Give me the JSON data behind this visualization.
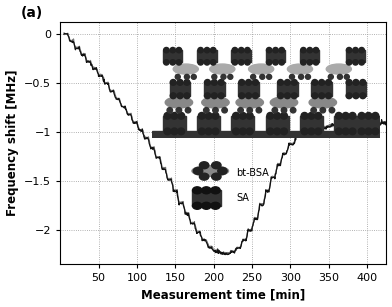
{
  "title": "(a)",
  "xlabel": "Measurement time [min]",
  "ylabel": "Frequency shift [MHz]",
  "xlim": [
    0,
    425
  ],
  "ylim": [
    -2.35,
    0.12
  ],
  "yticks": [
    0,
    -0.5,
    -1.0,
    -1.5,
    -2.0
  ],
  "xticks": [
    50,
    100,
    150,
    200,
    250,
    300,
    350,
    400
  ],
  "grid_color": "#999999",
  "background_color": "#ffffff",
  "series_resonance_color": "#777777",
  "parallel_resonance_color": "#111111",
  "legend_bt_bsa": "bt-BSA",
  "legend_sa": "SA",
  "step_times_down": [
    5,
    13,
    20,
    28,
    35,
    43,
    50,
    58,
    65,
    73,
    80,
    88,
    95,
    103,
    110,
    118,
    125,
    133,
    140,
    148,
    155,
    163,
    170,
    178,
    185,
    193,
    200,
    208,
    215
  ],
  "step_values_down": [
    0,
    -0.07,
    -0.14,
    -0.21,
    -0.28,
    -0.35,
    -0.42,
    -0.5,
    -0.58,
    -0.66,
    -0.74,
    -0.82,
    -0.9,
    -0.98,
    -1.06,
    -1.16,
    -1.26,
    -1.37,
    -1.48,
    -1.6,
    -1.72,
    -1.83,
    -1.93,
    -2.02,
    -2.1,
    -2.17,
    -2.21,
    -2.23,
    -2.24
  ],
  "step_times_up": [
    215,
    223,
    230,
    238,
    245,
    253,
    260,
    268,
    275,
    283,
    290,
    298,
    308,
    320,
    335,
    355,
    375,
    400,
    425
  ],
  "step_values_up": [
    -2.24,
    -2.22,
    -2.18,
    -2.1,
    -2.0,
    -1.88,
    -1.74,
    -1.6,
    -1.46,
    -1.33,
    -1.22,
    -1.12,
    -1.04,
    -0.98,
    -0.95,
    -0.93,
    -0.92,
    -0.91,
    -0.9
  ]
}
